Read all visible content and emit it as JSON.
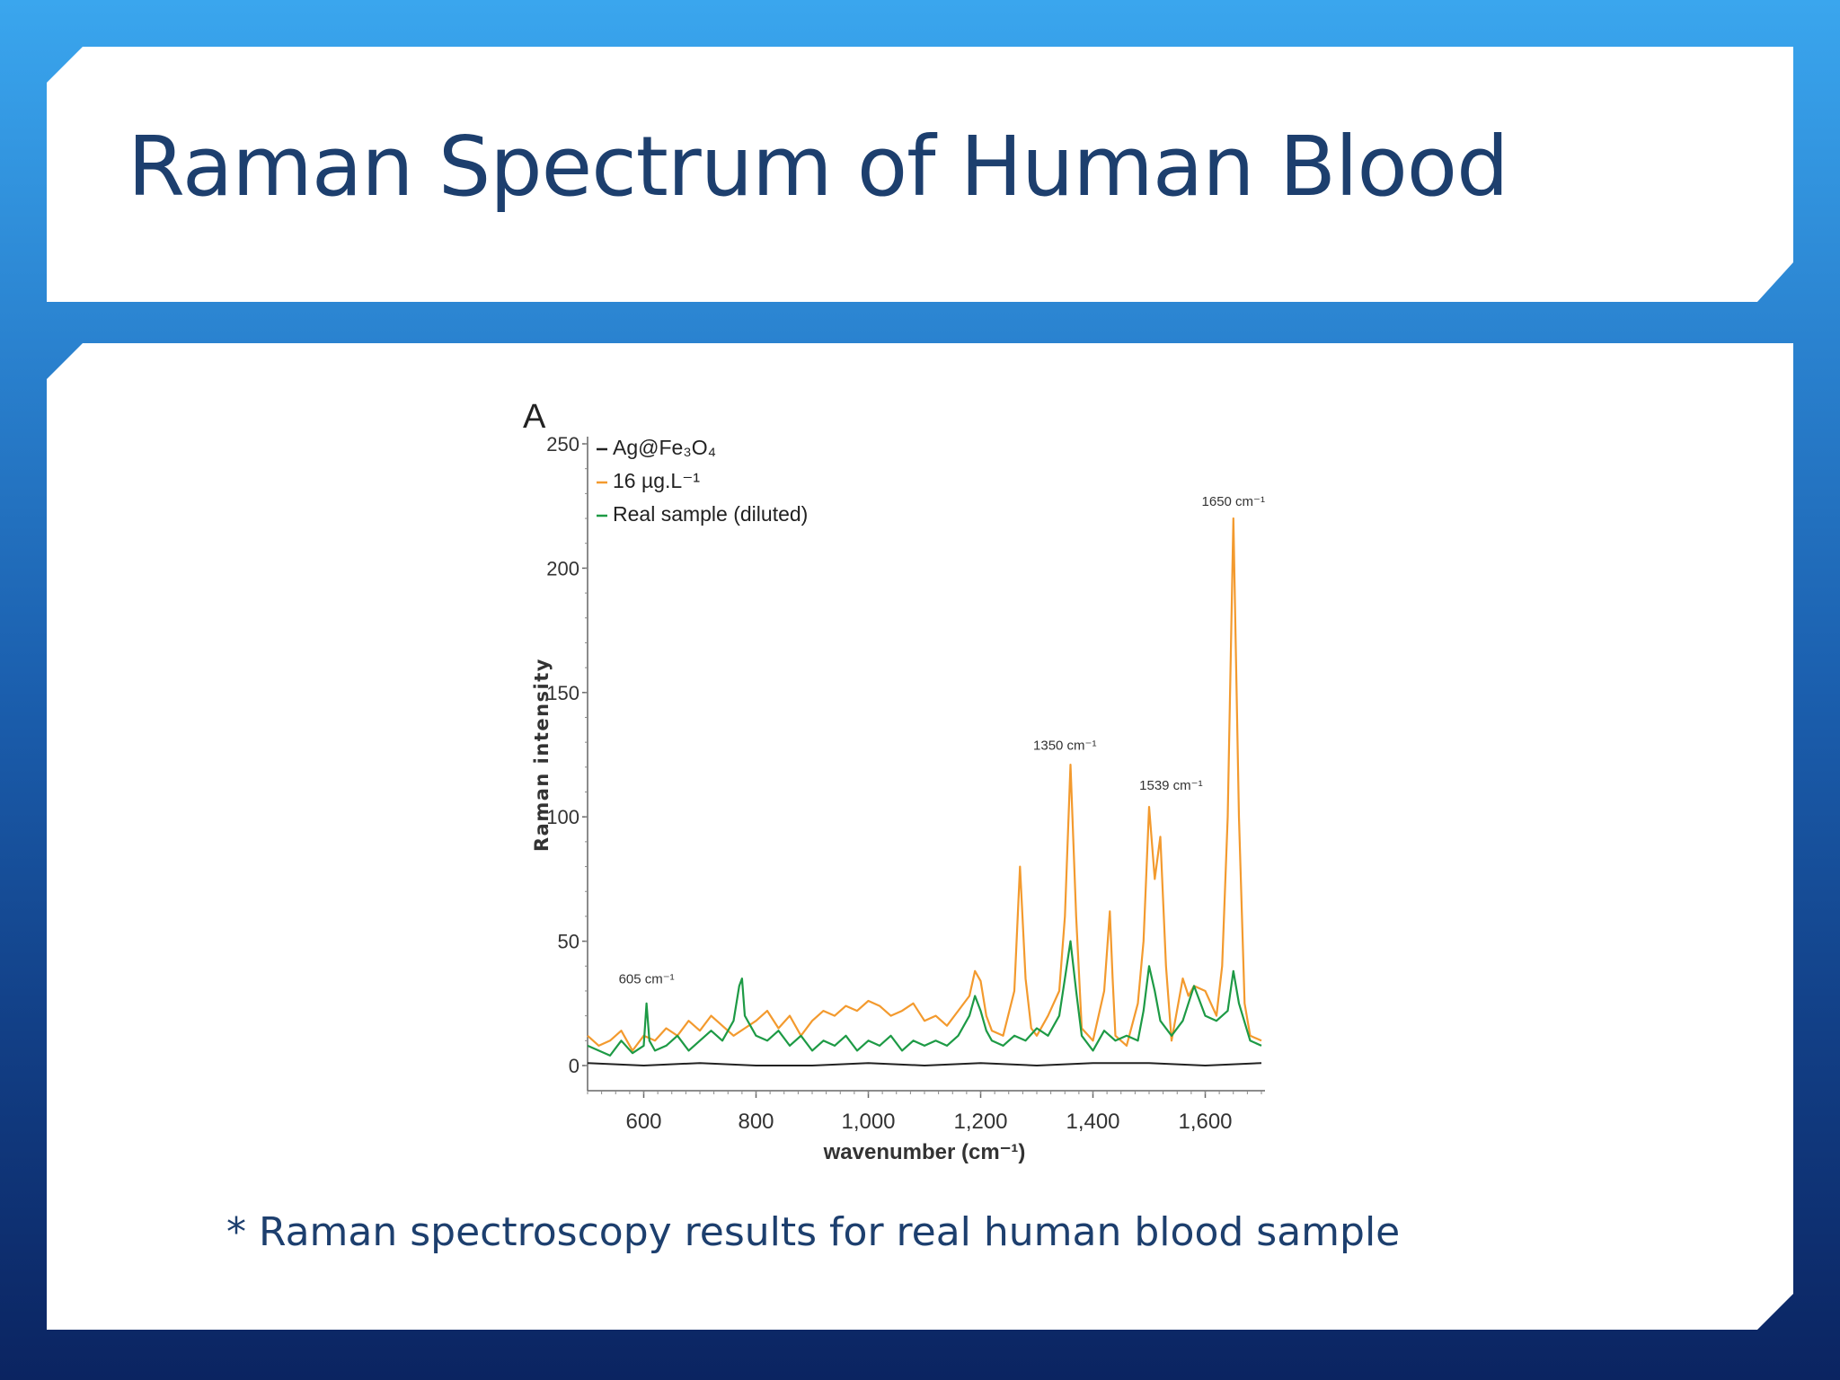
{
  "slide": {
    "title": "Raman Spectrum of Human Blood",
    "caption": "* Raman spectroscopy results for real human blood sample"
  },
  "colors": {
    "title_text": "#1d3f6e",
    "series_black": "#222222",
    "series_orange": "#f39a2e",
    "series_green": "#1d9a45"
  },
  "chart_data": {
    "type": "line",
    "panel_label": "A",
    "xlabel": "wavenumber (cm⁻¹)",
    "ylabel": "Raman intensity",
    "xlim": [
      500,
      1700
    ],
    "ylim": [
      0,
      250
    ],
    "x_ticks": [
      600,
      800,
      1000,
      1200,
      1400,
      1600
    ],
    "x_tick_labels": [
      "600",
      "800",
      "1,000",
      "1,200",
      "1,400",
      "1,600"
    ],
    "y_ticks": [
      0,
      50,
      100,
      150,
      200,
      250
    ],
    "y_tick_labels": [
      "0",
      "50",
      "100",
      "150",
      "200",
      "250"
    ],
    "legend_position": "top-left",
    "series": [
      {
        "name": "Ag@Fe₃O₄",
        "color": "#222222",
        "x": [
          500,
          600,
          700,
          800,
          900,
          1000,
          1100,
          1200,
          1300,
          1400,
          1500,
          1600,
          1700
        ],
        "y": [
          1,
          0,
          1,
          0,
          0,
          1,
          0,
          1,
          0,
          1,
          1,
          0,
          1
        ]
      },
      {
        "name": "16 µg.L⁻¹",
        "color": "#f39a2e",
        "x": [
          500,
          520,
          540,
          560,
          580,
          600,
          620,
          640,
          660,
          680,
          700,
          720,
          740,
          760,
          780,
          800,
          820,
          840,
          860,
          880,
          900,
          920,
          940,
          960,
          980,
          1000,
          1020,
          1040,
          1060,
          1080,
          1100,
          1120,
          1140,
          1160,
          1180,
          1190,
          1200,
          1210,
          1220,
          1240,
          1260,
          1270,
          1280,
          1290,
          1300,
          1320,
          1340,
          1350,
          1360,
          1370,
          1380,
          1400,
          1420,
          1430,
          1435,
          1440,
          1460,
          1480,
          1490,
          1500,
          1510,
          1520,
          1530,
          1540,
          1560,
          1570,
          1580,
          1600,
          1620,
          1630,
          1640,
          1650,
          1660,
          1670,
          1680,
          1700
        ],
        "y": [
          12,
          8,
          10,
          14,
          6,
          12,
          10,
          15,
          12,
          18,
          14,
          20,
          16,
          12,
          15,
          18,
          22,
          15,
          20,
          12,
          18,
          22,
          20,
          24,
          22,
          26,
          24,
          20,
          22,
          25,
          18,
          20,
          16,
          22,
          28,
          38,
          34,
          20,
          14,
          12,
          30,
          80,
          35,
          15,
          12,
          20,
          30,
          60,
          121,
          60,
          15,
          10,
          30,
          62,
          35,
          12,
          8,
          25,
          50,
          104,
          75,
          92,
          40,
          10,
          35,
          28,
          32,
          30,
          20,
          40,
          100,
          220,
          100,
          25,
          12,
          10
        ]
      },
      {
        "name": "Real sample (diluted)",
        "color": "#1d9a45",
        "x": [
          500,
          520,
          540,
          560,
          580,
          600,
          605,
          610,
          620,
          640,
          660,
          680,
          700,
          720,
          740,
          760,
          770,
          775,
          780,
          800,
          820,
          840,
          860,
          880,
          900,
          920,
          940,
          960,
          980,
          1000,
          1020,
          1040,
          1060,
          1080,
          1100,
          1120,
          1140,
          1160,
          1180,
          1190,
          1200,
          1210,
          1220,
          1240,
          1260,
          1280,
          1300,
          1320,
          1340,
          1350,
          1360,
          1370,
          1380,
          1400,
          1420,
          1440,
          1460,
          1480,
          1490,
          1500,
          1510,
          1520,
          1540,
          1560,
          1580,
          1600,
          1620,
          1640,
          1650,
          1660,
          1680,
          1700
        ],
        "y": [
          8,
          6,
          4,
          10,
          5,
          8,
          25,
          10,
          6,
          8,
          12,
          6,
          10,
          14,
          10,
          18,
          32,
          35,
          20,
          12,
          10,
          14,
          8,
          12,
          6,
          10,
          8,
          12,
          6,
          10,
          8,
          12,
          6,
          10,
          8,
          10,
          8,
          12,
          20,
          28,
          22,
          14,
          10,
          8,
          12,
          10,
          15,
          12,
          20,
          35,
          50,
          30,
          12,
          6,
          14,
          10,
          12,
          10,
          22,
          40,
          30,
          18,
          12,
          18,
          32,
          20,
          18,
          22,
          38,
          25,
          10,
          8
        ]
      }
    ],
    "annotations": [
      {
        "text": "605 cm⁻¹",
        "x": 605,
        "y": 33
      },
      {
        "text": "1350 cm⁻¹",
        "x": 1350,
        "y": 127
      },
      {
        "text": "1539 cm⁻¹",
        "x": 1539,
        "y": 111
      },
      {
        "text": "1650 cm⁻¹",
        "x": 1650,
        "y": 225
      }
    ]
  }
}
